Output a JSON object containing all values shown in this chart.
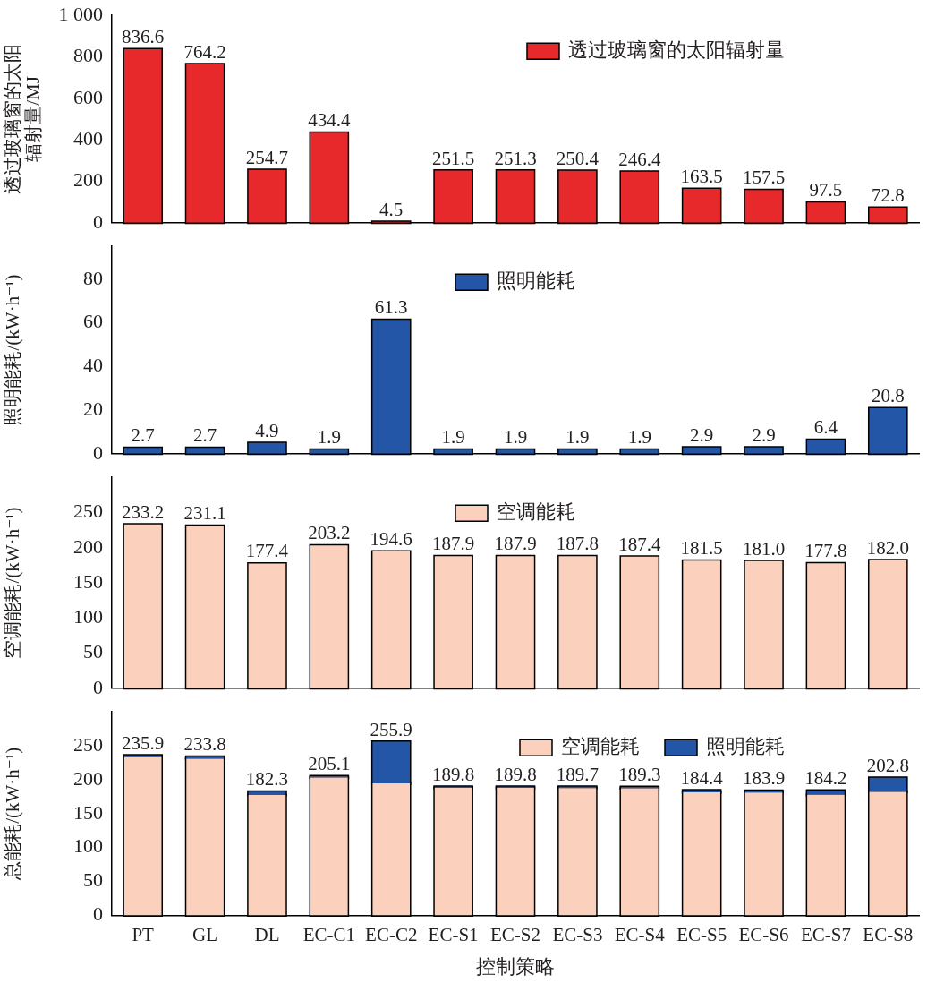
{
  "chart_data": [
    {
      "type": "bar",
      "ylabel": "透过玻璃窗的太阳辐射量/MJ",
      "categories": [
        null,
        null,
        null,
        null,
        null,
        null,
        null,
        null,
        null,
        null,
        null,
        null,
        null
      ],
      "series": [
        {
          "name": "透过玻璃窗的太阳辐射量",
          "color": "#e8292b",
          "values": [
            836.6,
            764.2,
            254.7,
            434.4,
            4.5,
            251.5,
            251.3,
            250.4,
            246.4,
            163.5,
            157.5,
            97.5,
            72.8
          ],
          "value_labels": [
            "836.6",
            "764.2",
            "254.7",
            "434.4",
            "4.5",
            "251.5",
            "251.3",
            "250.4",
            "246.4",
            "163.5",
            "157.5",
            "97.5",
            "72.8"
          ]
        }
      ],
      "ylim": [
        0,
        1000
      ],
      "yticks": [
        0,
        200,
        400,
        600,
        800,
        {
          "value": 1000,
          "label": "1 000"
        }
      ],
      "legend": "top right",
      "tick_labels": "y"
    },
    {
      "type": "bar",
      "ylabel": "照明能耗/(kW·h⁻¹)",
      "categories": [
        null,
        null,
        null,
        null,
        null,
        null,
        null,
        null,
        null,
        null,
        null,
        null,
        null
      ],
      "series": [
        {
          "name": "照明能耗",
          "color": "#2356a6",
          "values": [
            2.7,
            2.7,
            4.9,
            1.9,
            61.3,
            1.9,
            1.9,
            1.9,
            1.9,
            2.9,
            2.9,
            6.4,
            20.8
          ],
          "value_labels": [
            "2.7",
            "2.7",
            "4.9",
            "1.9",
            "61.3",
            "1.9",
            "1.9",
            "1.9",
            "1.9",
            "2.9",
            "2.9",
            "6.4",
            "20.8"
          ]
        }
      ],
      "ylim": [
        0,
        95
      ],
      "yticks": [
        0,
        20,
        40,
        60,
        80
      ],
      "legend": "top",
      "tick_labels": "y"
    },
    {
      "type": "bar",
      "ylabel": "空调能耗/(kW·h⁻¹)",
      "categories": [
        null,
        null,
        null,
        null,
        null,
        null,
        null,
        null,
        null,
        null,
        null,
        null,
        null
      ],
      "series": [
        {
          "name": "空调能耗",
          "color": "#fbd1bd",
          "values": [
            233.2,
            231.1,
            177.4,
            203.2,
            194.6,
            187.9,
            187.9,
            187.8,
            187.4,
            181.5,
            181.0,
            177.8,
            182.0
          ],
          "value_labels": [
            "233.2",
            "231.1",
            "177.4",
            "203.2",
            "194.6",
            "187.9",
            "187.9",
            "187.8",
            "187.4",
            "181.5",
            "181.0",
            "177.8",
            "182.0"
          ]
        }
      ],
      "ylim": [
        0,
        300
      ],
      "yticks": [
        0,
        50,
        100,
        150,
        200,
        250
      ],
      "legend": "top",
      "tick_labels": "y"
    },
    {
      "type": "bar",
      "stacked": true,
      "ylabel": "总能耗/(kW·h⁻¹)",
      "xlabel": "控制策略",
      "categories": [
        "PT",
        "GL",
        "DL",
        "EC-C1",
        "EC-C2",
        "EC-S1",
        "EC-S2",
        "EC-S3",
        "EC-S4",
        "EC-S5",
        "EC-S6",
        "EC-S7",
        "EC-S8"
      ],
      "series": [
        {
          "name": "空调能耗",
          "color": "#fbd1bd",
          "values": [
            233.2,
            231.1,
            177.4,
            203.2,
            194.6,
            187.9,
            187.9,
            187.8,
            187.4,
            181.5,
            181.0,
            177.8,
            182.0
          ]
        },
        {
          "name": "照明能耗",
          "color": "#2356a6",
          "values": [
            2.7,
            2.7,
            4.9,
            1.9,
            61.3,
            1.9,
            1.9,
            1.9,
            1.9,
            2.9,
            2.9,
            6.4,
            20.8
          ]
        }
      ],
      "totals": [
        "235.9",
        "233.8",
        "182.3",
        "205.1",
        "255.9",
        "189.8",
        "189.8",
        "189.7",
        "189.3",
        "184.4",
        "183.9",
        "184.2",
        "202.8"
      ],
      "ylim": [
        0,
        300
      ],
      "yticks": [
        0,
        50,
        100,
        150,
        200,
        250
      ],
      "legend": "top right"
    }
  ]
}
